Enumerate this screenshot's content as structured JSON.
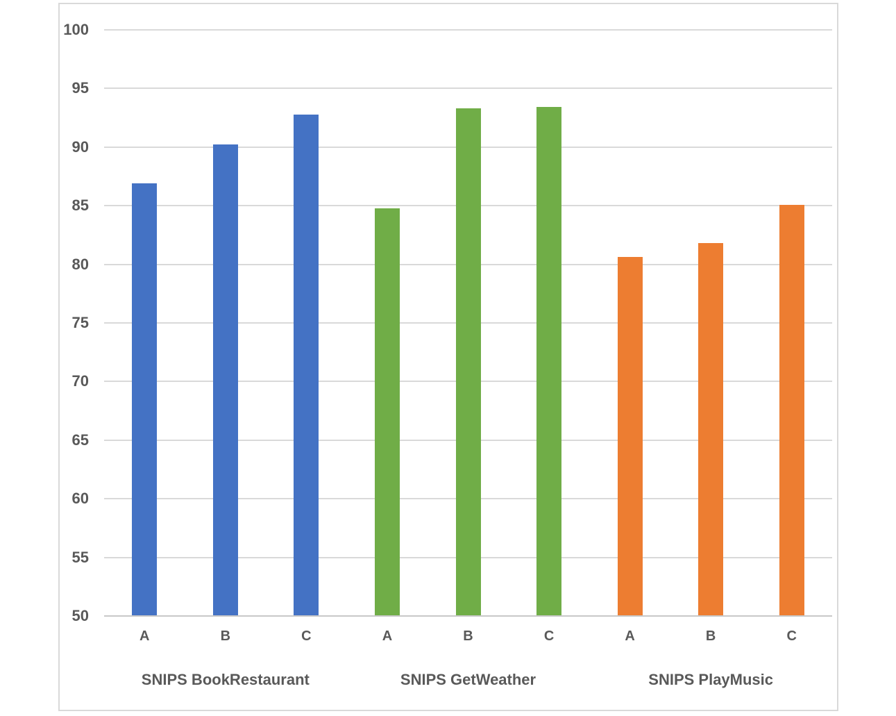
{
  "chart_data": {
    "type": "bar",
    "title": "",
    "xlabel": "",
    "ylabel": "",
    "ylim": [
      50,
      100
    ],
    "yticks": [
      50,
      55,
      60,
      65,
      70,
      75,
      80,
      85,
      90,
      95,
      100
    ],
    "grid": true,
    "legend_position": "none",
    "bar_sublabels": [
      "A",
      "B",
      "C"
    ],
    "groups": [
      {
        "label": "SNIPS BookRestaurant",
        "color": "#4472C4",
        "bars": [
          {
            "label": "A",
            "value": 86.9
          },
          {
            "label": "B",
            "value": 90.2
          },
          {
            "label": "C",
            "value": 92.8
          }
        ]
      },
      {
        "label": "SNIPS GetWeather",
        "color": "#70AD47",
        "bars": [
          {
            "label": "A",
            "value": 84.8
          },
          {
            "label": "B",
            "value": 93.3
          },
          {
            "label": "C",
            "value": 93.4
          }
        ]
      },
      {
        "label": "SNIPS PlayMusic",
        "color": "#ED7D31",
        "bars": [
          {
            "label": "A",
            "value": 80.6
          },
          {
            "label": "B",
            "value": 81.8
          },
          {
            "label": "C",
            "value": 85.1
          }
        ]
      }
    ]
  },
  "colors": {
    "bar_blue": "#4472C4",
    "bar_green": "#70AD47",
    "bar_orange": "#ED7D31",
    "gridline": "#D9D9D9",
    "axis_line": "#C8C8C8",
    "frame_border": "#D9D9D9",
    "text": "#595959",
    "background": "#FFFFFF"
  }
}
